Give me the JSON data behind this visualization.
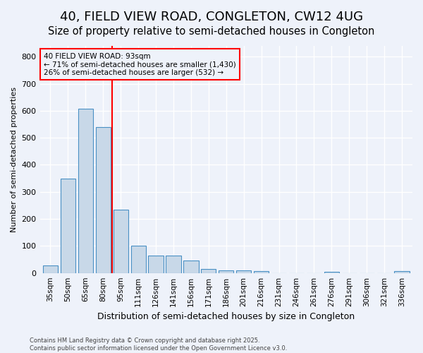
{
  "title1": "40, FIELD VIEW ROAD, CONGLETON, CW12 4UG",
  "title2": "Size of property relative to semi-detached houses in Congleton",
  "xlabel": "Distribution of semi-detached houses by size in Congleton",
  "ylabel": "Number of semi-detached properties",
  "footnote1": "Contains HM Land Registry data © Crown copyright and database right 2025.",
  "footnote2": "Contains public sector information licensed under the Open Government Licence v3.0.",
  "bar_labels": [
    "35sqm",
    "50sqm",
    "65sqm",
    "80sqm",
    "95sqm",
    "111sqm",
    "126sqm",
    "141sqm",
    "156sqm",
    "171sqm",
    "186sqm",
    "201sqm",
    "216sqm",
    "231sqm",
    "246sqm",
    "261sqm",
    "276sqm",
    "291sqm",
    "306sqm",
    "321sqm",
    "336sqm"
  ],
  "bar_values": [
    28,
    350,
    607,
    540,
    235,
    100,
    65,
    65,
    47,
    15,
    10,
    10,
    7,
    0,
    0,
    0,
    5,
    0,
    0,
    0,
    7
  ],
  "bar_color": "#c8d8e8",
  "bar_edge_color": "#4a90c4",
  "vline_x": 3.5,
  "vline_color": "red",
  "annotation_title": "40 FIELD VIEW ROAD: 93sqm",
  "annotation_line1": "← 71% of semi-detached houses are smaller (1,430)",
  "annotation_line2": "26% of semi-detached houses are larger (532) →",
  "annotation_box_color": "red",
  "ylim": [
    0,
    840
  ],
  "yticks": [
    0,
    100,
    200,
    300,
    400,
    500,
    600,
    700,
    800
  ],
  "bg_color": "#eef2fa",
  "grid_color": "white",
  "title1_fontsize": 13,
  "title2_fontsize": 10.5
}
